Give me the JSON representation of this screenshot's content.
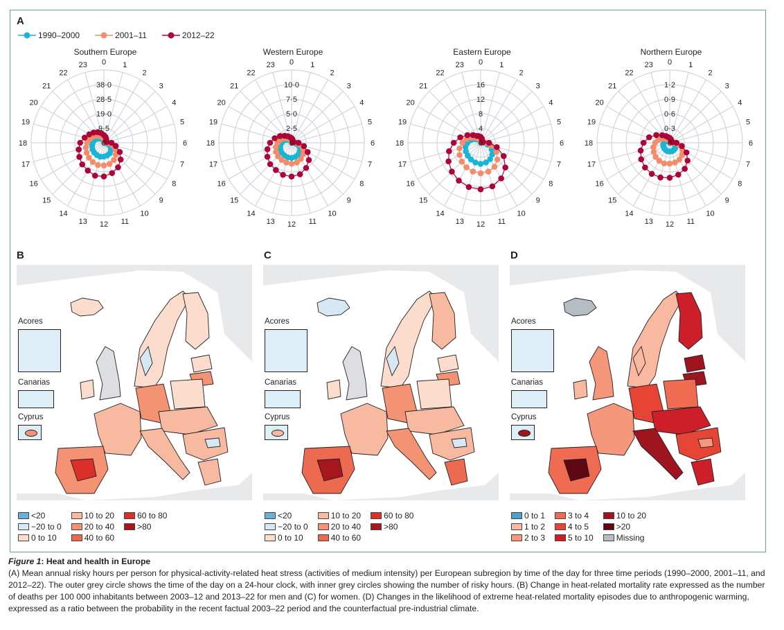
{
  "figure": {
    "caption_label": "Figure 1",
    "caption_title": "Heat and health in Europe",
    "caption_text": "(A) Mean annual risky hours per person for physical-activity-related heat stress (activities of medium intensity) per European subregion by time of the day for three time periods (1990–2000, 2001–11, and 2012–22). The outer grey circle shows the time of the day on a 24-hour clock, with inner grey circles showing the number of risky hours. (B) Change in heat-related mortality rate expressed as the number of deaths per 100 000 inhabitants between 2003–12 and 2013–22 for men and (C) for women. (D) Changes in the likelihood of extreme heat-related mortality episodes due to anthropogenic warming, expressed as a ratio between the probability in the recent factual 2003–22 period and the counterfactual pre-industrial climate."
  },
  "panels": {
    "a": "A",
    "b": "B",
    "c": "C",
    "d": "D"
  },
  "colors": {
    "p1990": "#1ab4d4",
    "p2001": "#f28c6b",
    "p2012": "#ab0537",
    "grid": "#cfd5de",
    "frame": "#5fa583"
  },
  "chart_data": [
    {
      "type": "radial-line",
      "title": "Southern Europe",
      "hours": [
        "0",
        "1",
        "2",
        "3",
        "4",
        "5",
        "6",
        "7",
        "8",
        "9",
        "10",
        "11",
        "12",
        "13",
        "14",
        "15",
        "16",
        "17",
        "18",
        "19",
        "20",
        "21",
        "22",
        "23"
      ],
      "ticks": [
        "0",
        "9·5",
        "19·0",
        "28·5",
        "38·0"
      ],
      "rmax": 47.5,
      "legend": [
        "1990–2000",
        "2001–11",
        "2012–22"
      ],
      "series": [
        {
          "name": "1990–2000",
          "values": [
            1.0,
            0.6,
            0.4,
            0.2,
            0.2,
            0.3,
            0.8,
            2.5,
            4.8,
            6.5,
            7.8,
            8.5,
            9.0,
            9.4,
            9.2,
            9.0,
            8.6,
            8.0,
            7.2,
            6.5,
            5.0,
            4.0,
            3.0,
            2.0
          ]
        },
        {
          "name": "2001–11",
          "values": [
            2.5,
            1.8,
            1.2,
            0.8,
            0.6,
            0.8,
            3.0,
            5.5,
            8.5,
            11.0,
            13.0,
            14.3,
            14.8,
            15.0,
            14.5,
            13.8,
            13.0,
            12.2,
            11.0,
            9.5,
            8.0,
            6.5,
            5.0,
            4.0
          ]
        },
        {
          "name": "2012–22",
          "values": [
            5.0,
            4.0,
            3.0,
            2.0,
            1.5,
            2.0,
            5.0,
            8.0,
            12.0,
            15.5,
            18.5,
            20.5,
            22.0,
            22.2,
            21.0,
            20.0,
            18.5,
            17.0,
            15.5,
            13.0,
            11.0,
            9.5,
            8.0,
            6.5
          ]
        }
      ]
    },
    {
      "type": "radial-line",
      "title": "Western Europe",
      "hours": [
        "0",
        "1",
        "2",
        "3",
        "4",
        "5",
        "6",
        "7",
        "8",
        "9",
        "10",
        "11",
        "12",
        "13",
        "14",
        "15",
        "16",
        "17",
        "18",
        "19",
        "20",
        "21",
        "22",
        "23"
      ],
      "ticks": [
        "0",
        "2·5",
        "5·0",
        "7·5",
        "10·0"
      ],
      "rmax": 12.5,
      "legend": [
        "1990–2000",
        "2001–11",
        "2012–22"
      ],
      "series": [
        {
          "name": "1990–2000",
          "values": [
            0.2,
            0.1,
            0.1,
            0.05,
            0.05,
            0.1,
            0.3,
            0.9,
            1.6,
            2.0,
            2.3,
            2.5,
            2.6,
            2.6,
            2.5,
            2.4,
            2.2,
            2.0,
            1.7,
            1.4,
            1.0,
            0.7,
            0.5,
            0.3
          ]
        },
        {
          "name": "2001–11",
          "values": [
            0.4,
            0.3,
            0.2,
            0.1,
            0.1,
            0.2,
            0.8,
            1.5,
            2.3,
            2.8,
            3.2,
            3.5,
            3.6,
            3.5,
            3.4,
            3.3,
            3.1,
            2.8,
            2.4,
            2.0,
            1.5,
            1.1,
            0.8,
            0.6
          ]
        },
        {
          "name": "2012–22",
          "values": [
            0.8,
            0.6,
            0.4,
            0.3,
            0.2,
            0.4,
            1.2,
            2.2,
            3.2,
            4.2,
            5.0,
            5.6,
            5.8,
            5.7,
            5.4,
            5.2,
            4.8,
            4.3,
            3.7,
            3.0,
            2.3,
            1.7,
            1.3,
            1.0
          ]
        }
      ]
    },
    {
      "type": "radial-line",
      "title": "Eastern Europe",
      "hours": [
        "0",
        "1",
        "2",
        "3",
        "4",
        "5",
        "6",
        "7",
        "8",
        "9",
        "10",
        "11",
        "12",
        "13",
        "14",
        "15",
        "16",
        "17",
        "18",
        "19",
        "20",
        "21",
        "22",
        "23"
      ],
      "ticks": [
        "0",
        "4",
        "8",
        "12",
        "16"
      ],
      "rmax": 20,
      "legend": [
        "1990–2000",
        "2001–11",
        "2012–22"
      ],
      "series": [
        {
          "name": "1990–2000",
          "values": [
            0.4,
            0.3,
            0.2,
            0.1,
            0.1,
            0.2,
            0.8,
            2.0,
            3.5,
            4.5,
            5.2,
            5.6,
            5.8,
            5.6,
            5.3,
            5.0,
            4.7,
            4.3,
            3.6,
            2.8,
            2.0,
            1.3,
            0.9,
            0.6
          ]
        },
        {
          "name": "2001–11",
          "values": [
            0.8,
            0.6,
            0.4,
            0.2,
            0.2,
            0.4,
            1.4,
            3.0,
            5.0,
            6.5,
            7.6,
            8.2,
            8.4,
            8.2,
            7.8,
            7.3,
            6.7,
            6.0,
            5.0,
            4.0,
            2.8,
            2.0,
            1.4,
            1.0
          ]
        },
        {
          "name": "2012–22",
          "values": [
            1.6,
            1.2,
            0.8,
            0.5,
            0.4,
            0.7,
            2.3,
            4.6,
            7.3,
            9.6,
            11.3,
            12.4,
            12.8,
            12.6,
            12.0,
            11.2,
            10.2,
            9.0,
            7.4,
            5.8,
            4.2,
            3.0,
            2.2,
            1.9
          ]
        }
      ]
    },
    {
      "type": "radial-line",
      "title": "Northern Europe",
      "hours": [
        "0",
        "1",
        "2",
        "3",
        "4",
        "5",
        "6",
        "7",
        "8",
        "9",
        "10",
        "11",
        "12",
        "13",
        "14",
        "15",
        "16",
        "17",
        "18",
        "19",
        "20",
        "21",
        "22",
        "23"
      ],
      "ticks": [
        "0",
        "0·3",
        "0·6",
        "0·9",
        "1·2"
      ],
      "rmax": 1.5,
      "legend": [
        "1990–2000",
        "2001–11",
        "2012–22"
      ],
      "series": [
        {
          "name": "1990–2000",
          "values": [
            0.02,
            0.01,
            0.01,
            0.01,
            0.01,
            0.02,
            0.05,
            0.1,
            0.14,
            0.16,
            0.17,
            0.18,
            0.18,
            0.18,
            0.17,
            0.16,
            0.15,
            0.14,
            0.12,
            0.1,
            0.07,
            0.05,
            0.03,
            0.02
          ]
        },
        {
          "name": "2001–11",
          "values": [
            0.05,
            0.04,
            0.03,
            0.02,
            0.02,
            0.03,
            0.1,
            0.2,
            0.3,
            0.36,
            0.4,
            0.42,
            0.43,
            0.44,
            0.43,
            0.41,
            0.38,
            0.35,
            0.3,
            0.24,
            0.18,
            0.12,
            0.08,
            0.06
          ]
        },
        {
          "name": "2012–22",
          "values": [
            0.1,
            0.08,
            0.06,
            0.04,
            0.04,
            0.06,
            0.14,
            0.26,
            0.4,
            0.52,
            0.62,
            0.68,
            0.72,
            0.74,
            0.74,
            0.72,
            0.68,
            0.62,
            0.54,
            0.44,
            0.32,
            0.22,
            0.16,
            0.12
          ]
        }
      ]
    }
  ],
  "maps": {
    "insets": [
      "Acores",
      "Canarias",
      "Cyprus"
    ],
    "legend_bc": [
      {
        "label": "<20",
        "color": "#6bafd6"
      },
      {
        "label": "−20 to 0",
        "color": "#d6e8f4"
      },
      {
        "label": "0 to 10",
        "color": "#fbdccd"
      },
      {
        "label": "10 to 20",
        "color": "#f7b9a0"
      },
      {
        "label": "20 to 40",
        "color": "#f39374"
      },
      {
        "label": "40 to 60",
        "color": "#ec6a4f"
      },
      {
        "label": "60 to 80",
        "color": "#dc2f2a"
      },
      {
        "label": ">80",
        "color": "#a6161f"
      }
    ],
    "legend_d": [
      {
        "label": "0 to 1",
        "color": "#4ba0d2"
      },
      {
        "label": "1 to 2",
        "color": "#f9b8a0"
      },
      {
        "label": "2 to 3",
        "color": "#f4977a"
      },
      {
        "label": "3 to 4",
        "color": "#ef6c52"
      },
      {
        "label": "4 to 5",
        "color": "#e64535"
      },
      {
        "label": "5 to 10",
        "color": "#cd1f2a"
      },
      {
        "label": "10 to 20",
        "color": "#9e1520"
      },
      {
        "label": ">20",
        "color": "#5f0713"
      },
      {
        "label": "Missing",
        "color": "#b6bcc4"
      }
    ]
  }
}
